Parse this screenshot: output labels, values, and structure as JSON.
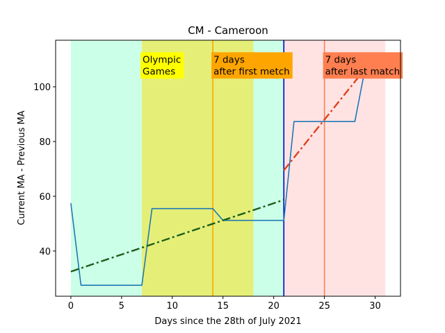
{
  "chart_data": {
    "type": "line",
    "title": "CM - Cameroon",
    "xlabel": "Days since the 28th of July 2021",
    "ylabel": "Current MA - Previous MA",
    "xlim": [
      -1.5,
      32.5
    ],
    "ylim": [
      23.5,
      117
    ],
    "x_ticks": [
      0,
      5,
      10,
      15,
      20,
      25,
      30
    ],
    "y_ticks": [
      40,
      60,
      80,
      100
    ],
    "grid": false,
    "shaded_regions": [
      {
        "x0": 0,
        "x1": 7,
        "color": "#ccffe8"
      },
      {
        "x0": 7,
        "x1": 18,
        "color": "#e5ef78"
      },
      {
        "x0": 18,
        "x1": 21,
        "color": "#ccffe8"
      },
      {
        "x0": 21,
        "x1": 31,
        "color": "#ffe3e3"
      }
    ],
    "vertical_lines": [
      {
        "x": 14,
        "color": "#ffa500"
      },
      {
        "x": 21,
        "color": "#0000d0"
      },
      {
        "x": 25,
        "color": "#ff7f50"
      }
    ],
    "annotations": [
      {
        "lines": [
          "Olympic",
          "Games"
        ],
        "x": 7,
        "y": 104.5,
        "bg": "#ffff00"
      },
      {
        "lines": [
          "7 days",
          "after first metch"
        ],
        "x": 14,
        "y": 104.5,
        "bg": "#ffa500"
      },
      {
        "lines": [
          "7 days",
          "after last match"
        ],
        "x": 25,
        "y": 104.5,
        "bg": "#ff7f50"
      }
    ],
    "series": [
      {
        "style": "solid",
        "color": "#1f77b4",
        "x": [
          0,
          1,
          2,
          3,
          4,
          5,
          6,
          7,
          8,
          9,
          10,
          11,
          12,
          13,
          14,
          15,
          16,
          17,
          18,
          19,
          20,
          21,
          22,
          23,
          24,
          25,
          26,
          27,
          28,
          29
        ],
        "y": [
          57.5,
          27.5,
          27.5,
          27.5,
          27.5,
          27.5,
          27.5,
          27.5,
          55.5,
          55.5,
          55.5,
          55.5,
          55.5,
          55.5,
          55.5,
          51.2,
          51.2,
          51.2,
          51.2,
          51.2,
          51.2,
          51.2,
          87.3,
          87.3,
          87.3,
          87.3,
          87.3,
          87.3,
          87.3,
          106.5
        ]
      },
      {
        "style": "dashdot",
        "color": "#1a5e1a",
        "x": [
          0,
          21
        ],
        "y": [
          32.5,
          58.7
        ]
      },
      {
        "style": "dashdot",
        "color": "#e0401c",
        "x": [
          21,
          29
        ],
        "y": [
          69.5,
          106.5
        ]
      }
    ]
  }
}
